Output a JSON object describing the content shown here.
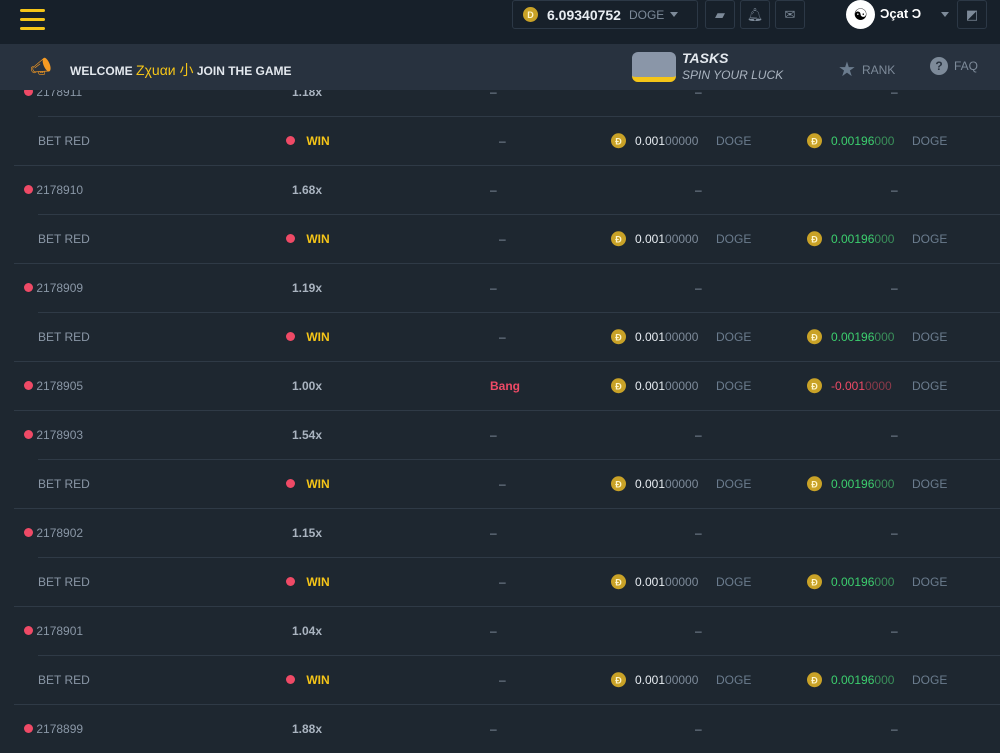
{
  "topbar": {
    "balance": "6.09340752",
    "currency": "DOGE",
    "username": "Ɔçat Ɔ"
  },
  "welcome": {
    "prefix": "WELCOME",
    "name": "Zχuαи 小",
    "suffix": "JOIN THE GAME",
    "tasks_title": "TASKS",
    "tasks_sub": "SPIN YOUR LUCK",
    "rank": "RANK",
    "faq": "FAQ"
  },
  "colors": {
    "accent": "#f5c518",
    "win": "#3ccf6e",
    "loss": "#ef4a66"
  },
  "rows": [
    {
      "type": "game",
      "id": "2178911",
      "mult": "1.18x",
      "c3": "–",
      "c4": "–",
      "c5": "–"
    },
    {
      "type": "bet",
      "label": "BET RED",
      "result": "WIN",
      "c3": "–",
      "bet_main": "0.001",
      "bet_rest": "00000",
      "cur": "DOGE",
      "pay_main": "0.00196",
      "pay_rest": "000",
      "pay_kind": "pos"
    },
    {
      "type": "game",
      "id": "2178910",
      "mult": "1.68x",
      "c3": "–",
      "c4": "–",
      "c5": "–"
    },
    {
      "type": "bet",
      "label": "BET RED",
      "result": "WIN",
      "c3": "–",
      "bet_main": "0.001",
      "bet_rest": "00000",
      "cur": "DOGE",
      "pay_main": "0.00196",
      "pay_rest": "000",
      "pay_kind": "pos"
    },
    {
      "type": "game",
      "id": "2178909",
      "mult": "1.19x",
      "c3": "–",
      "c4": "–",
      "c5": "–"
    },
    {
      "type": "bet",
      "label": "BET RED",
      "result": "WIN",
      "c3": "–",
      "bet_main": "0.001",
      "bet_rest": "00000",
      "cur": "DOGE",
      "pay_main": "0.00196",
      "pay_rest": "000",
      "pay_kind": "pos"
    },
    {
      "type": "game",
      "id": "2178905",
      "mult": "1.00x",
      "c3": "Bang",
      "bet_main": "0.001",
      "bet_rest": "00000",
      "cur": "DOGE",
      "pay_main": "-0.001",
      "pay_rest": "0000",
      "pay_kind": "neg"
    },
    {
      "type": "game",
      "id": "2178903",
      "mult": "1.54x",
      "c3": "–",
      "c4": "–",
      "c5": "–"
    },
    {
      "type": "bet",
      "label": "BET RED",
      "result": "WIN",
      "c3": "–",
      "bet_main": "0.001",
      "bet_rest": "00000",
      "cur": "DOGE",
      "pay_main": "0.00196",
      "pay_rest": "000",
      "pay_kind": "pos"
    },
    {
      "type": "game",
      "id": "2178902",
      "mult": "1.15x",
      "c3": "–",
      "c4": "–",
      "c5": "–"
    },
    {
      "type": "bet",
      "label": "BET RED",
      "result": "WIN",
      "c3": "–",
      "bet_main": "0.001",
      "bet_rest": "00000",
      "cur": "DOGE",
      "pay_main": "0.00196",
      "pay_rest": "000",
      "pay_kind": "pos"
    },
    {
      "type": "game",
      "id": "2178901",
      "mult": "1.04x",
      "c3": "–",
      "c4": "–",
      "c5": "–"
    },
    {
      "type": "bet",
      "label": "BET RED",
      "result": "WIN",
      "c3": "–",
      "bet_main": "0.001",
      "bet_rest": "00000",
      "cur": "DOGE",
      "pay_main": "0.00196",
      "pay_rest": "000",
      "pay_kind": "pos"
    },
    {
      "type": "game",
      "id": "2178899",
      "mult": "1.88x",
      "c3": "–",
      "c4": "–",
      "c5": "–"
    }
  ]
}
